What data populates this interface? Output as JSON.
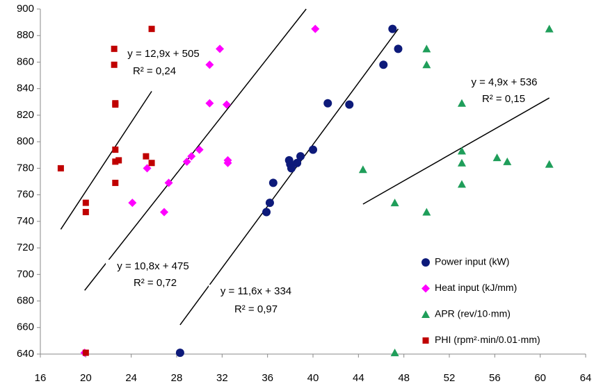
{
  "chart_data": {
    "type": "scatter",
    "xlim": [
      16,
      64
    ],
    "xticks": [
      16,
      20,
      24,
      28,
      32,
      36,
      40,
      44,
      48,
      52,
      56,
      60,
      64
    ],
    "ylim": [
      640,
      900
    ],
    "yticks": [
      640,
      660,
      680,
      700,
      720,
      740,
      760,
      780,
      800,
      820,
      840,
      860,
      880,
      900
    ],
    "grid": false,
    "legend": "bottom-right",
    "series": [
      {
        "name": "Power input (kW)",
        "color": "#0d1a7a",
        "marker": "circle",
        "x": [
          47.0,
          47.5,
          46.2,
          41.3,
          43.2,
          40.0,
          38.9,
          37.9,
          38.0,
          38.1,
          38.6,
          36.5,
          36.2,
          35.9,
          28.3
        ],
        "values": [
          885,
          870,
          858,
          829,
          828,
          794,
          789,
          786,
          783,
          780,
          784,
          769,
          754,
          747,
          641
        ]
      },
      {
        "name": "Heat input (kJ/mm)",
        "color": "#ff00ff",
        "marker": "diamond",
        "x": [
          40.2,
          31.8,
          30.9,
          30.9,
          32.4,
          30.0,
          29.3,
          28.9,
          32.5,
          32.5,
          25.4,
          27.3,
          26.9,
          24.1,
          19.9
        ],
        "values": [
          885,
          870,
          858,
          829,
          828,
          794,
          789,
          785,
          786,
          784,
          780,
          769,
          747,
          754,
          641
        ]
      },
      {
        "name": "APR (rev/10·mm)",
        "color": "#1f9e5a",
        "marker": "triangle",
        "x": [
          60.8,
          50.0,
          50.0,
          53.1,
          53.1,
          53.1,
          56.2,
          57.1,
          60.8,
          44.4,
          53.1,
          47.2,
          50.0,
          47.2
        ],
        "values": [
          885,
          870,
          858,
          829,
          793,
          784,
          788,
          785,
          783,
          779,
          768,
          754,
          747,
          641
        ]
      },
      {
        "name": "PHI (rpm²·min/0.01·mm)",
        "color": "#c00000",
        "marker": "square",
        "x": [
          25.8,
          22.5,
          22.5,
          22.6,
          22.6,
          22.6,
          25.3,
          22.9,
          22.6,
          25.8,
          17.8,
          22.6,
          20.0,
          20.0,
          20.0
        ],
        "values": [
          885,
          870,
          858,
          829,
          828,
          794,
          789,
          786,
          785,
          784,
          780,
          769,
          754,
          747,
          641
        ]
      }
    ],
    "trendlines": [
      {
        "equation": "y = 12,9x + 505",
        "r2": "R² = 0,24",
        "x": [
          17.8,
          25.8
        ],
        "values": [
          734,
          838
        ],
        "color": "#000000"
      },
      {
        "equation": "y = 4,9x + 536",
        "r2": "R² = 0,15",
        "x": [
          44.4,
          60.8
        ],
        "values": [
          753,
          833
        ],
        "color": "#000000"
      },
      {
        "equation": "y = 10,8x + 475",
        "r2": "R² = 0,72",
        "x": [
          19.9,
          39.4
        ],
        "values": [
          688,
          900
        ],
        "color": "#000000"
      },
      {
        "equation": "y = 11,6x + 334",
        "r2": "R² = 0,97",
        "x": [
          28.3,
          47.5
        ],
        "values": [
          662,
          885
        ],
        "color": "#000000"
      }
    ]
  }
}
